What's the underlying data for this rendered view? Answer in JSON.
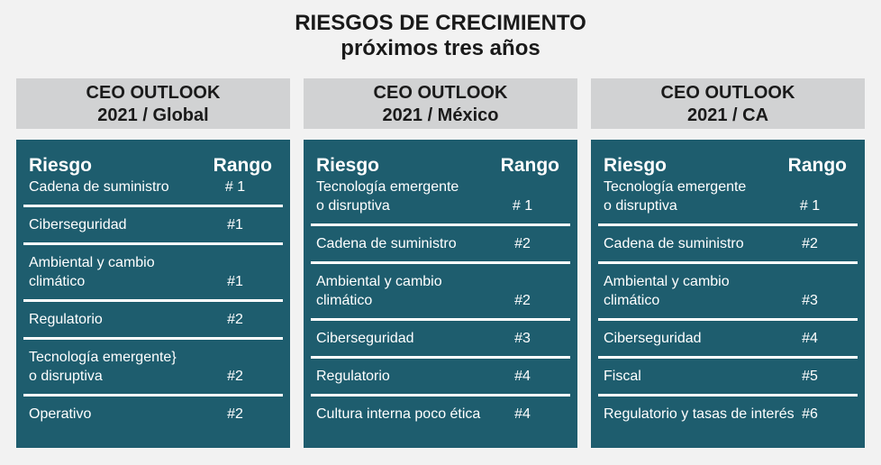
{
  "header": {
    "title": [
      "RIESGOS DE CRECIMIENTO",
      "próximos tres años"
    ]
  },
  "panels": [
    {
      "heading": [
        "CEO OUTLOOK",
        "2021 / Global"
      ],
      "columns": [
        "Riesgo",
        "Rango"
      ],
      "rows": [
        {
          "risk": [
            "Cadena de suministro"
          ],
          "rank": "# 1"
        },
        {
          "risk": [
            "Ciberseguridad"
          ],
          "rank": "#1"
        },
        {
          "risk": [
            "Ambiental y cambio",
            "climático"
          ],
          "rank": "#1"
        },
        {
          "risk": [
            "Regulatorio"
          ],
          "rank": "#2"
        },
        {
          "risk": [
            "Tecnología emergente}",
            "o disruptiva"
          ],
          "rank": "#2"
        },
        {
          "risk": [
            "Operativo"
          ],
          "rank": "#2"
        }
      ]
    },
    {
      "heading": [
        "CEO OUTLOOK",
        "2021 / México"
      ],
      "columns": [
        "Riesgo",
        "Rango"
      ],
      "rows": [
        {
          "risk": [
            "Tecnología emergente",
            "o disruptiva"
          ],
          "rank": "# 1"
        },
        {
          "risk": [
            "Cadena de suministro"
          ],
          "rank": "#2"
        },
        {
          "risk": [
            "Ambiental y cambio",
            "climático"
          ],
          "rank": "#2"
        },
        {
          "risk": [
            "Ciberseguridad"
          ],
          "rank": "#3"
        },
        {
          "risk": [
            "Regulatorio"
          ],
          "rank": "#4"
        },
        {
          "risk": [
            "Cultura interna poco ética"
          ],
          "rank": "#4"
        }
      ]
    },
    {
      "heading": [
        "CEO OUTLOOK",
        "2021 / CA"
      ],
      "columns": [
        "Riesgo",
        "Rango"
      ],
      "rows": [
        {
          "risk": [
            "Tecnología emergente",
            "o disruptiva"
          ],
          "rank": "# 1"
        },
        {
          "risk": [
            "Cadena de suministro"
          ],
          "rank": "#2"
        },
        {
          "risk": [
            "Ambiental y cambio",
            "climático"
          ],
          "rank": "#3"
        },
        {
          "risk": [
            "Ciberseguridad"
          ],
          "rank": "#4"
        },
        {
          "risk": [
            "Fiscal"
          ],
          "rank": "#5"
        },
        {
          "risk": [
            "Regulatorio y tasas de interés"
          ],
          "rank": "#6"
        }
      ]
    }
  ]
}
